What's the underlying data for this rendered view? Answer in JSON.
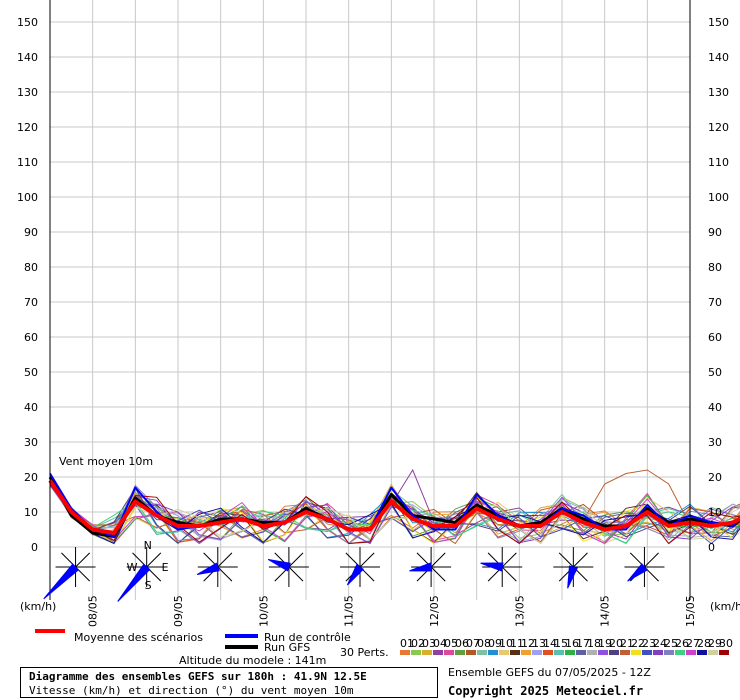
{
  "labels": {
    "units_left": "(km/h)",
    "units_right": "(km/h)",
    "series_label": "Vent moyen 10m",
    "mean_label": "Moyenne des scénarios",
    "control_label": "Run de contrôle",
    "gfs_label": "Run GFS",
    "perts_label": "30 Perts.",
    "altitude": "Altitude du modele : 141m",
    "title": "Diagramme des ensembles GEFS sur 180h : 41.9N 12.5E",
    "subtitle": "Vitesse (km/h) et direction (°) du vent moyen 10m",
    "ensemble": "Ensemble GEFS du 07/05/2025 - 12Z",
    "copyright": "Copyright 2025 Meteociel.fr"
  },
  "colors": {
    "mean": "#ff0000",
    "control": "#0000ff",
    "gfs": "#000000",
    "grid": "#c8c8c8",
    "rose": "#0000ff",
    "perturbations": [
      "#e87830",
      "#8cc850",
      "#d8b030",
      "#9040a0",
      "#e04898",
      "#60a040",
      "#b05828",
      "#80c0a0",
      "#2090d0",
      "#e8c870",
      "#583018",
      "#f0a030",
      "#a0a0f0",
      "#e05020",
      "#58c0b0",
      "#30b040",
      "#6060a0",
      "#b0b0b0",
      "#9050e0",
      "#504080",
      "#c06030",
      "#f0e020",
      "#4050c0",
      "#8040c0",
      "#8080c0",
      "#40d080",
      "#d040d0",
      "#1010a0",
      "#d0d0a0",
      "#a00000"
    ]
  },
  "pert_numbers": [
    "01",
    "02",
    "03",
    "04",
    "05",
    "06",
    "07",
    "08",
    "09",
    "10",
    "11",
    "12",
    "13",
    "14",
    "15",
    "16",
    "17",
    "18",
    "19",
    "20",
    "21",
    "22",
    "23",
    "24",
    "25",
    "26",
    "27",
    "28",
    "29",
    "30"
  ],
  "chart_data": {
    "type": "line",
    "title": "Diagramme des ensembles GEFS sur 180h : 41.9N 12.5E",
    "ylabel": "(km/h)",
    "ylim": [
      0,
      150
    ],
    "yticks": [
      0,
      10,
      20,
      30,
      40,
      50,
      60,
      70,
      80,
      90,
      100,
      110,
      120,
      130,
      140,
      150
    ],
    "x_hours_range": [
      0,
      180
    ],
    "x_tick_hours": [
      12,
      36,
      60,
      84,
      108,
      132,
      156,
      180
    ],
    "x_tick_labels": [
      "08/05",
      "09/05",
      "10/05",
      "11/05",
      "12/05",
      "13/05",
      "14/05",
      "15/05"
    ],
    "grid": true,
    "series": [
      {
        "name": "Moyenne des scénarios",
        "step_hours": 6,
        "values": [
          19,
          10,
          5,
          4,
          13,
          9,
          6,
          6,
          7,
          8,
          6,
          7,
          10,
          8,
          5,
          5,
          13,
          8,
          6,
          6,
          11,
          8,
          6,
          6,
          10,
          7,
          5,
          6,
          10,
          6,
          7,
          6,
          7,
          10
        ]
      },
      {
        "name": "Run de contrôle",
        "step_hours": 6,
        "values": [
          21,
          11,
          5,
          3,
          17,
          10,
          5,
          6,
          7,
          8,
          6,
          7,
          10,
          8,
          5,
          5,
          17,
          9,
          5,
          5,
          15,
          9,
          6,
          6,
          11,
          9,
          5,
          5,
          12,
          6,
          9,
          7,
          6,
          12
        ]
      },
      {
        "name": "Run GFS",
        "step_hours": 6,
        "values": [
          20,
          9,
          4,
          3,
          14,
          9,
          7,
          6,
          8,
          8,
          7,
          7,
          11,
          8,
          5,
          5,
          15,
          9,
          8,
          7,
          12,
          9,
          6,
          7,
          11,
          8,
          6,
          6,
          11,
          7,
          8,
          7,
          6,
          11
        ]
      }
    ],
    "wind_roses": [
      {
        "day": "07/05",
        "dir_deg": 225
      },
      {
        "day": "08/05",
        "dir_deg": 220
      },
      {
        "day": "09/05",
        "dir_deg": 250
      },
      {
        "day": "10/05",
        "dir_deg": 290
      },
      {
        "day": "11/05",
        "dir_deg": 215
      },
      {
        "day": "12/05",
        "dir_deg": 260
      },
      {
        "day": "13/05",
        "dir_deg": 280
      },
      {
        "day": "14/05",
        "dir_deg": 195
      },
      {
        "day": "15/05",
        "dir_deg": 230
      }
    ]
  }
}
